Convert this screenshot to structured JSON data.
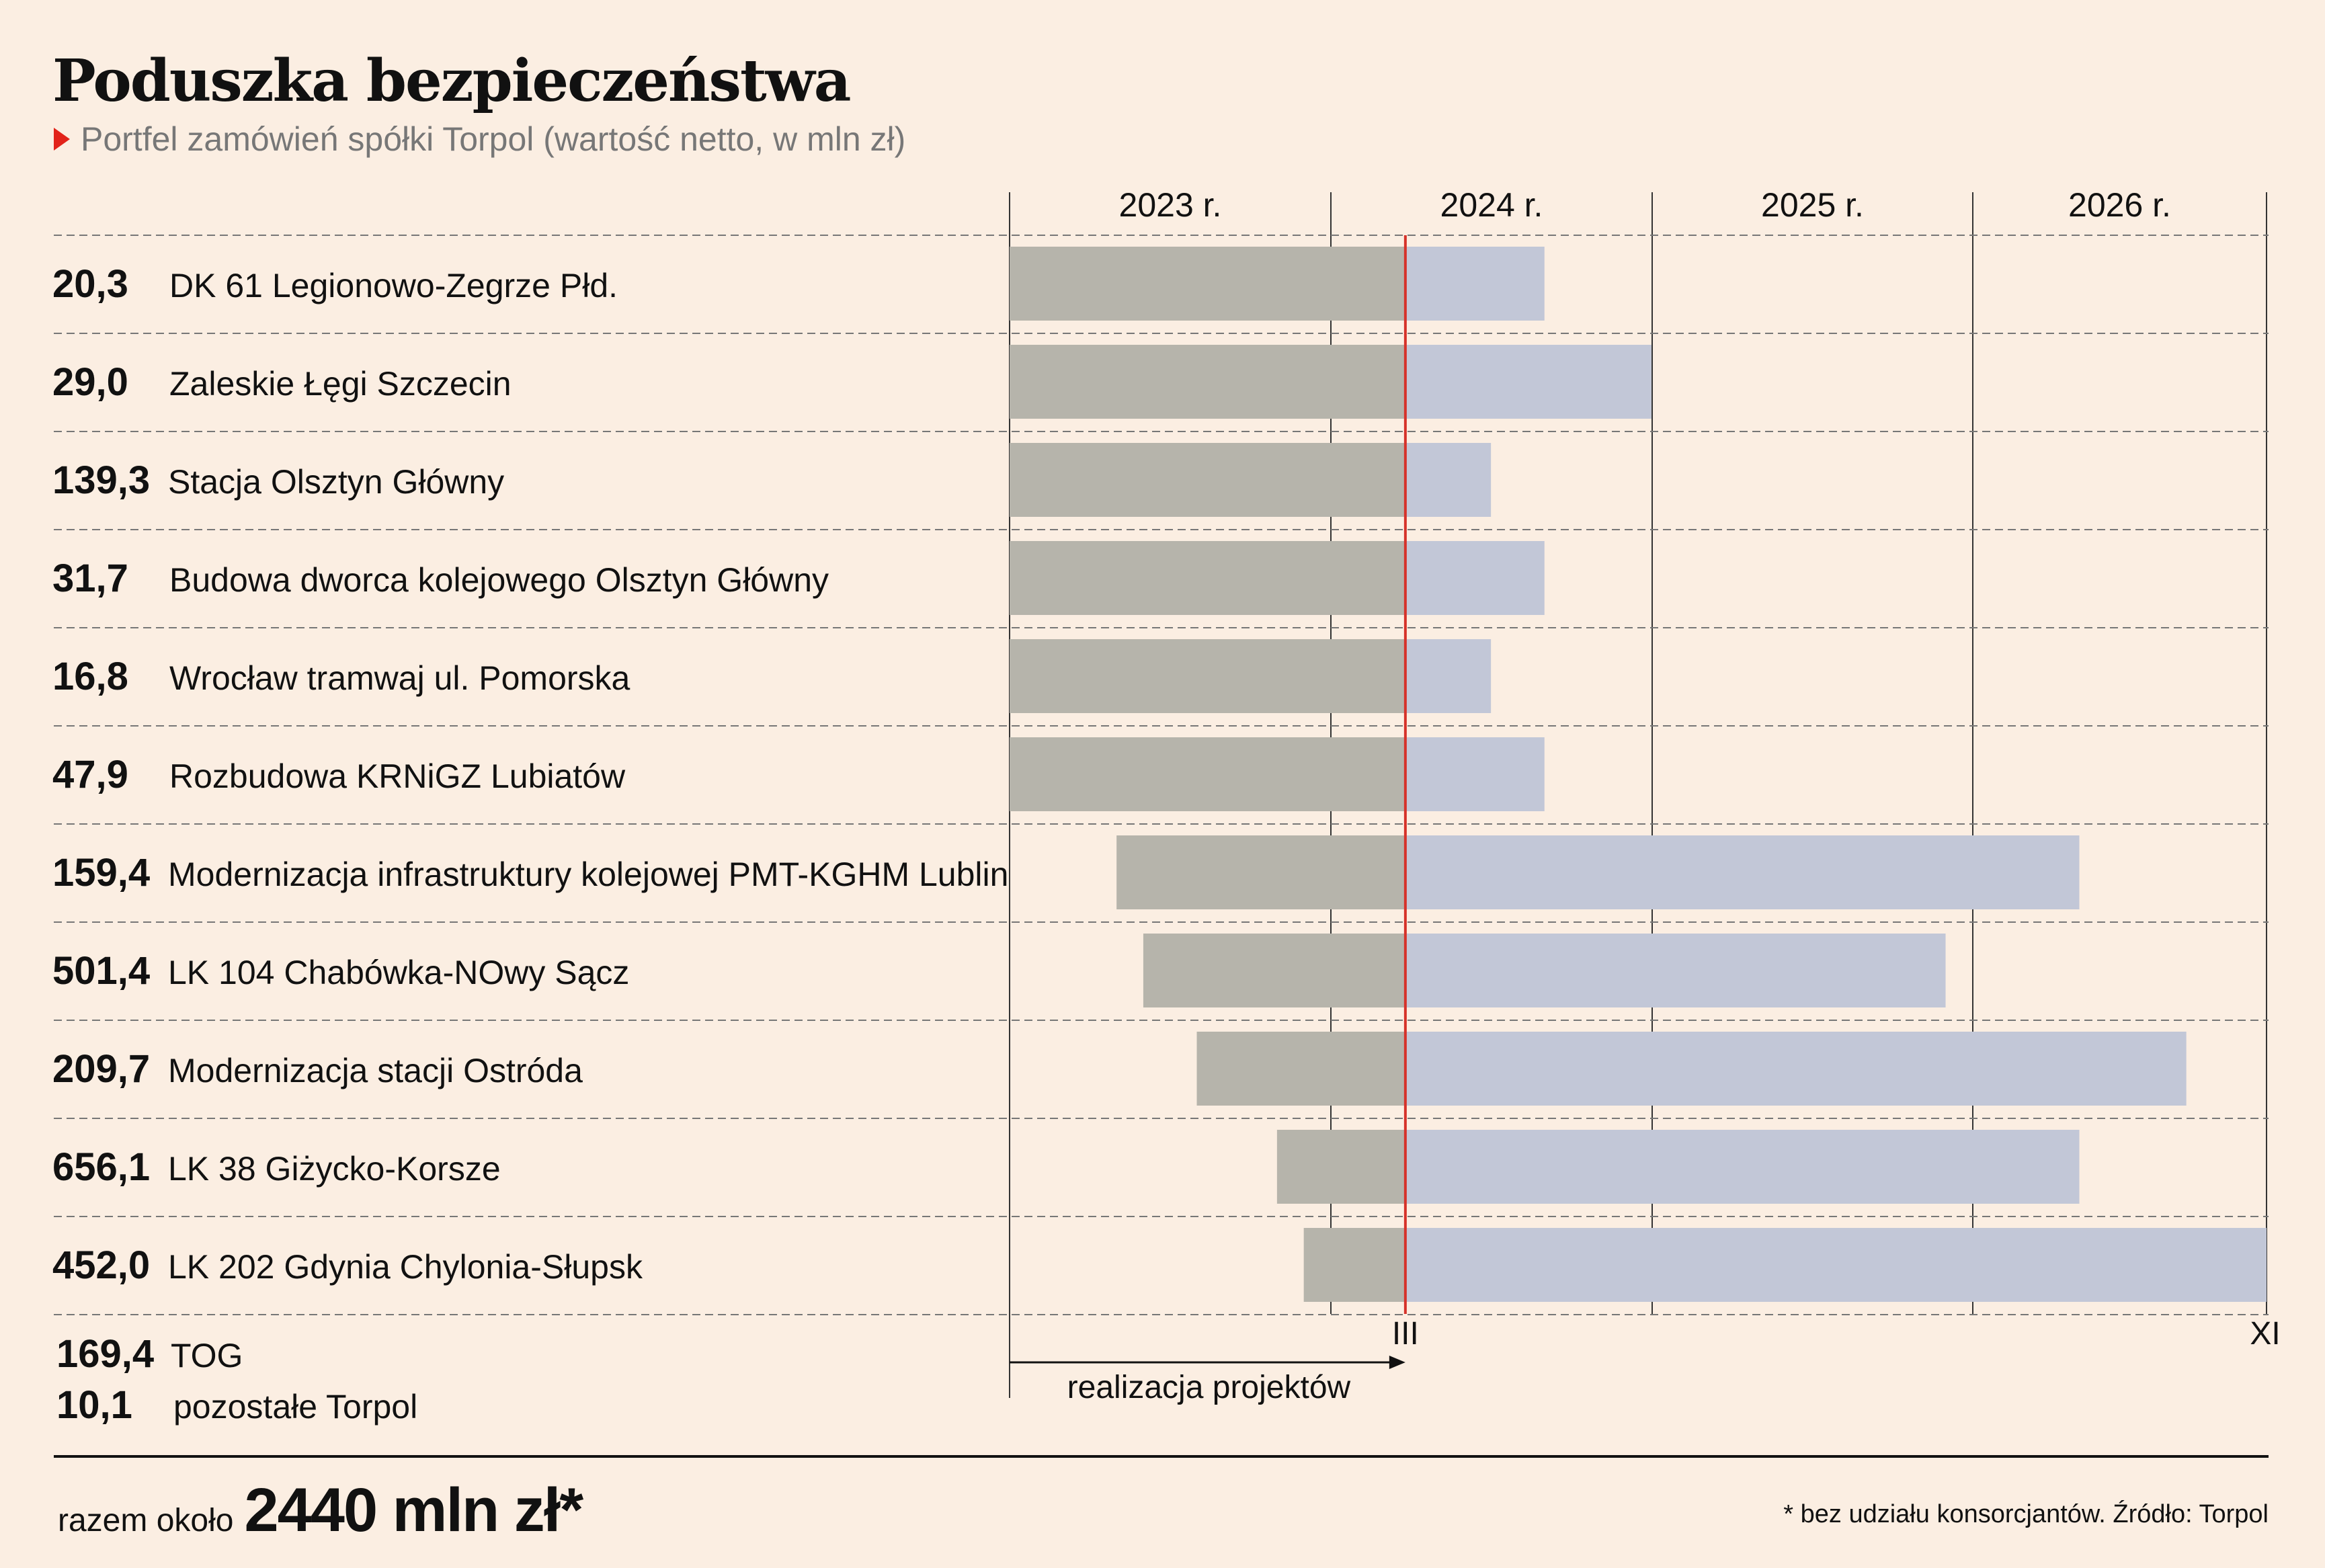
{
  "header": {
    "title": "Poduszka bezpieczeństwa",
    "subtitle": "Portfel zamówień spółki Torpol (wartość netto, w mln zł)"
  },
  "colors": {
    "background": "#fbeee2",
    "done": "#b6b4ab",
    "remaining": "#c2c7d7",
    "today_line": "#d6322a",
    "accent": "#e2231a"
  },
  "chart_data": {
    "type": "gantt",
    "title": "Poduszka bezpieczeństwa",
    "subtitle": "Portfel zamówień spółki Torpol (wartość netto, w mln zł)",
    "years": [
      "2023 r.",
      "2024 r.",
      "2025 r.",
      "2026 r."
    ],
    "x_range_months": [
      0,
      47
    ],
    "current_marker": {
      "label": "III",
      "month": 14.8
    },
    "end_marker": {
      "label": "XI",
      "month": 47
    },
    "arrow_label": "realizacja projektów",
    "projects": [
      {
        "value": "20,3",
        "name": "DK 61 Legionowo-Zegrze Płd.",
        "start": 0,
        "end": 20
      },
      {
        "value": "29,0",
        "name": "Zaleskie Łęgi Szczecin",
        "start": 0,
        "end": 24
      },
      {
        "value": "139,3",
        "name": "Stacja Olsztyn Główny",
        "start": 0,
        "end": 18
      },
      {
        "value": "31,7",
        "name": "Budowa dworca kolejowego Olsztyn Główny",
        "start": 0,
        "end": 20
      },
      {
        "value": "16,8",
        "name": "Wrocław tramwaj ul. Pomorska",
        "start": 0,
        "end": 18
      },
      {
        "value": "47,9",
        "name": "Rozbudowa KRNiGZ Lubiatów",
        "start": 0,
        "end": 20
      },
      {
        "value": "159,4",
        "name": "Modernizacja infrastruktury kolejowej PMT-KGHM Lublin",
        "start": 4,
        "end": 40
      },
      {
        "value": "501,4",
        "name": "LK 104 Chabówka-NOwy Sącz",
        "start": 5,
        "end": 35
      },
      {
        "value": "209,7",
        "name": "Modernizacja stacji Ostróda",
        "start": 7,
        "end": 44
      },
      {
        "value": "656,1",
        "name": "LK 38 Giżycko-Korsze",
        "start": 10,
        "end": 40
      },
      {
        "value": "452,0",
        "name": "LK 202 Gdynia Chylonia-Słupsk",
        "start": 11,
        "end": 47
      }
    ],
    "extra_items": [
      {
        "value": "169,4",
        "name": "TOG"
      },
      {
        "value": "10,1",
        "name": "pozostałe Torpol"
      }
    ]
  },
  "footer": {
    "total_prefix": "razem około",
    "total_value": "2440 mln zł*",
    "footnote": "* bez udziału konsorcjantów. Źródło: Torpol"
  }
}
